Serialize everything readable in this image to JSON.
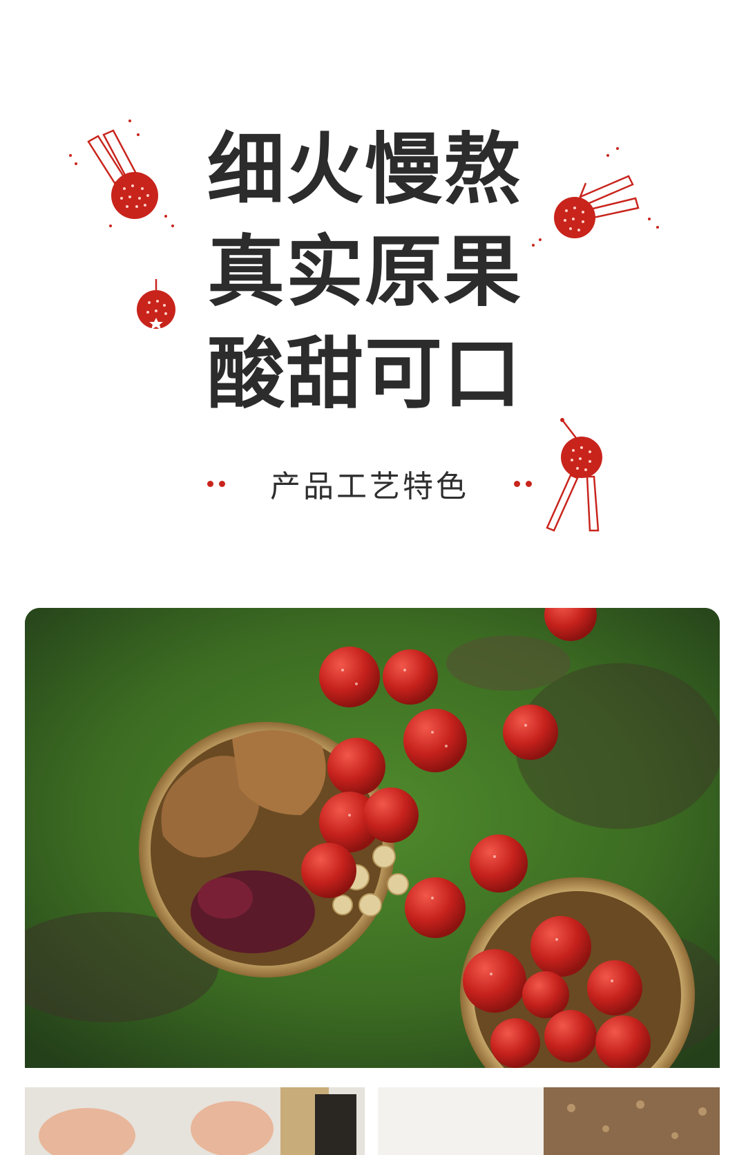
{
  "headline": {
    "lines": [
      "细火慢熬",
      "真实原果",
      "酸甜可口"
    ]
  },
  "section_label": "产品工艺特色",
  "colors": {
    "accent_red": "#c8241c",
    "headline_text": "#2c2c2c",
    "moss_green": "#3b6b22"
  },
  "icons": {
    "decoration": "hawthorn-doodle-icon",
    "separator": "dot-separator-icon"
  }
}
